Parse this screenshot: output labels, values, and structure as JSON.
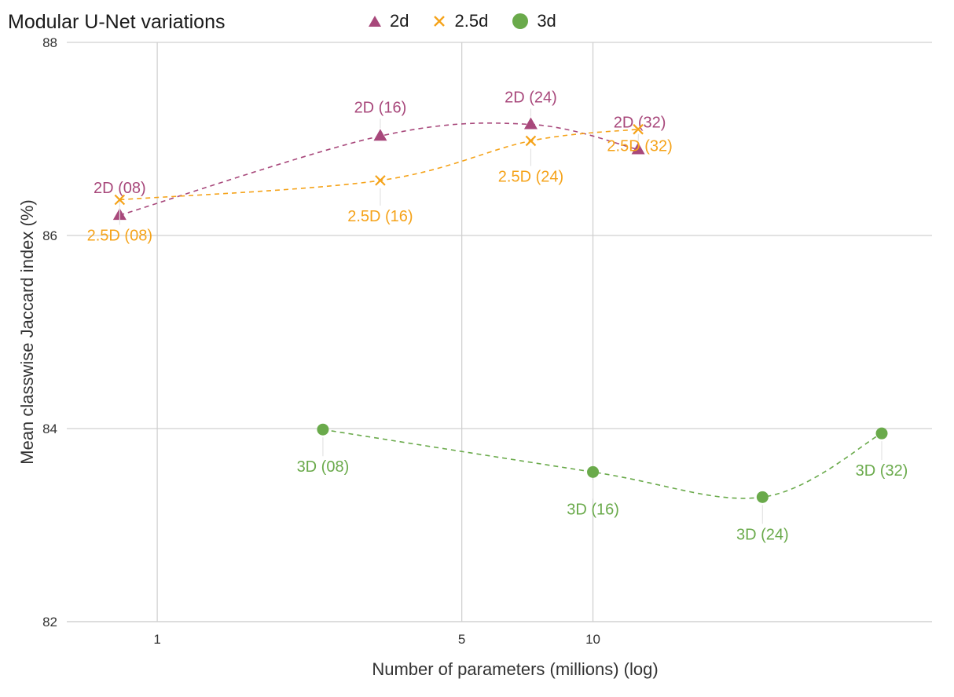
{
  "chart_data": {
    "type": "scatter",
    "title": "Modular U-Net variations",
    "xlabel": "Number of parameters (millions) (log)",
    "ylabel": "Mean classwise Jaccard index (%)",
    "x_scale": "log",
    "xlim": [
      0.62,
      60
    ],
    "ylim": [
      82,
      88
    ],
    "x_ticks": [
      1,
      5,
      10
    ],
    "y_ticks": [
      82,
      84,
      86,
      88
    ],
    "grid": true,
    "legend_position": "top",
    "series": [
      {
        "name": "2d",
        "marker": "triangle",
        "color": "#a8487b",
        "points": [
          {
            "x": 0.82,
            "y": 86.21,
            "label": "2D (08)"
          },
          {
            "x": 3.25,
            "y": 87.03,
            "label": "2D (16)"
          },
          {
            "x": 7.2,
            "y": 87.15,
            "label": "2D (24)"
          },
          {
            "x": 12.7,
            "y": 86.89,
            "label": "2D (32)"
          }
        ]
      },
      {
        "name": "2.5d",
        "marker": "x",
        "color": "#f5a31a",
        "points": [
          {
            "x": 0.82,
            "y": 86.37,
            "label": "2.5D (08)"
          },
          {
            "x": 3.25,
            "y": 86.57,
            "label": "2.5D (16)"
          },
          {
            "x": 7.2,
            "y": 86.98,
            "label": "2.5D (24)"
          },
          {
            "x": 12.7,
            "y": 87.1,
            "label": "2.5D (32)"
          }
        ]
      },
      {
        "name": "3d",
        "marker": "circle",
        "color": "#6aaa4b",
        "points": [
          {
            "x": 2.4,
            "y": 83.99,
            "label": "3D (08)"
          },
          {
            "x": 10.0,
            "y": 83.55,
            "label": "3D (16)"
          },
          {
            "x": 24.5,
            "y": 83.29,
            "label": "3D (24)"
          },
          {
            "x": 46.0,
            "y": 83.95,
            "label": "3D (32)"
          }
        ]
      }
    ]
  }
}
